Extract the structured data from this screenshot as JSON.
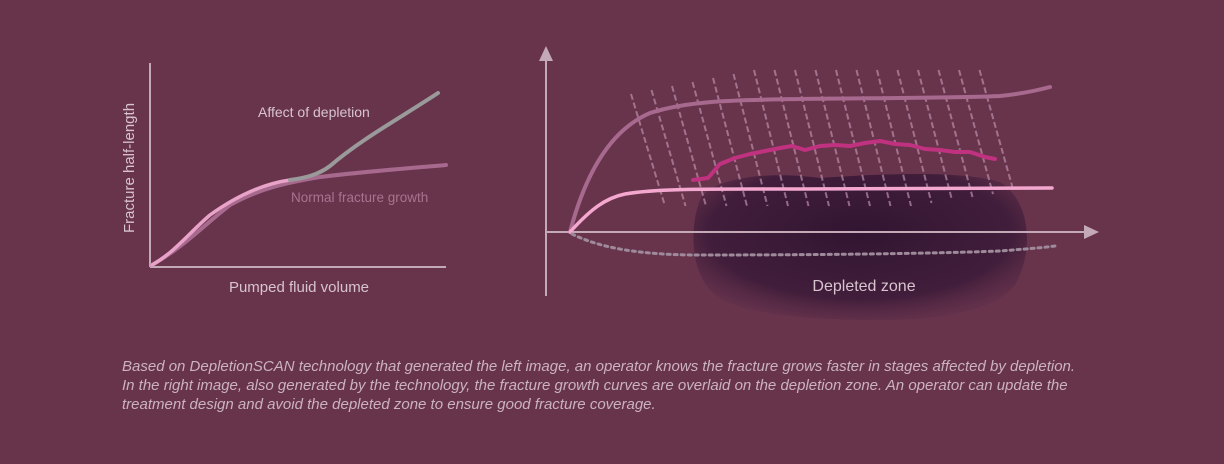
{
  "left_chart": {
    "y_label": "Fracture half-length",
    "x_label": "Pumped fluid volume",
    "series": [
      {
        "name": "Affect of depletion",
        "color": "#9a9a9a"
      },
      {
        "name": "Normal fracture growth",
        "color": "#a7698e"
      }
    ]
  },
  "right_chart": {
    "zone_label": "Depleted zone",
    "colors": {
      "zone": "#3a1a36",
      "upper_curve": "#a7698e",
      "inner_curve": "#f4a8cf",
      "fracture_path": "#c0317f",
      "dotted_curve": "#9e8a9a",
      "hatching": "#bb8eaa"
    }
  },
  "caption": "Based on DepletionSCAN technology that generated the left image, an operator knows the fracture grows faster in stages affected by depletion. In the right image, also generated by the technology, the fracture growth curves are overlaid on the depletion zone. An operator can update the treatment design and avoid the depleted zone to ensure good fracture coverage.",
  "colors": {
    "background": "#68344c",
    "axis": "#c4aab8",
    "text": "#d8c4cf"
  }
}
